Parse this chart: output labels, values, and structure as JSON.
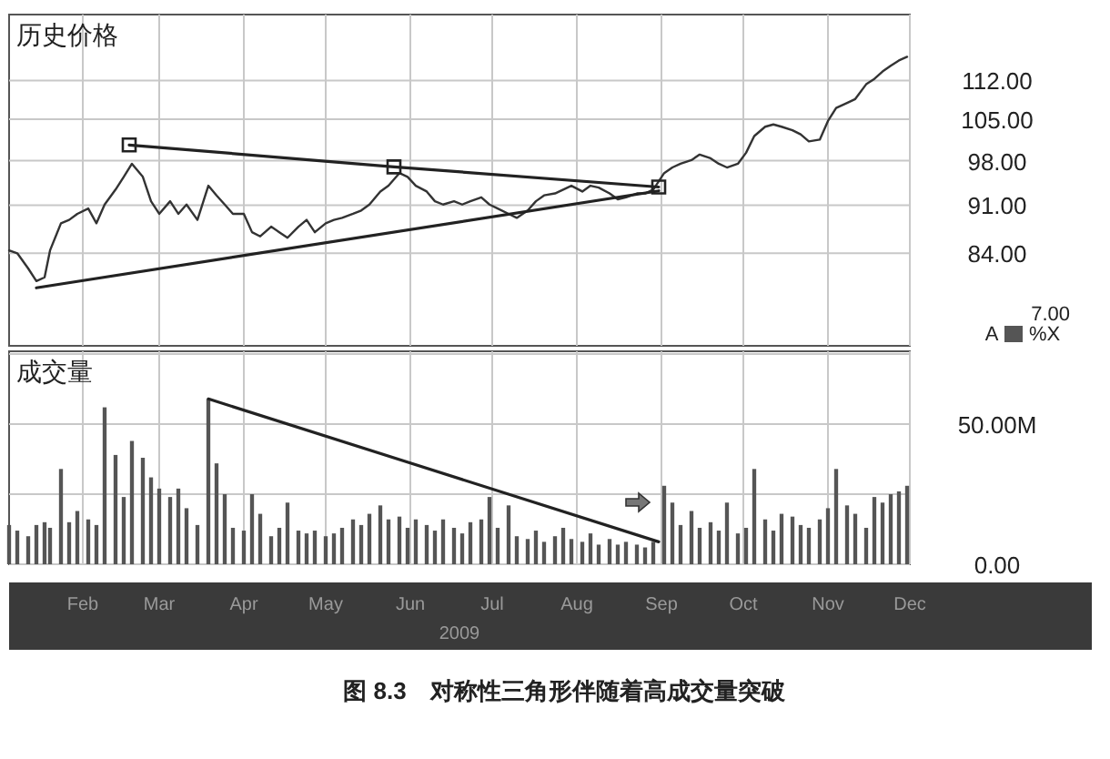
{
  "chart_data": [
    {
      "type": "line",
      "title": "历史价格",
      "log": "y",
      "grid": true,
      "tick_labels": "y",
      "xlim": [
        "2009-01-05",
        "2009-12-01"
      ],
      "ylim": [
        72,
        125
      ],
      "xticks": [
        {
          "value": "2009-02-01",
          "label": null
        },
        {
          "value": "2009-03-01",
          "label": null
        },
        {
          "value": "2009-04-01",
          "label": null
        },
        {
          "value": "2009-05-01",
          "label": null
        },
        {
          "value": "2009-06-01",
          "label": null
        },
        {
          "value": "2009-07-01",
          "label": null
        },
        {
          "value": "2009-08-01",
          "label": null
        },
        {
          "value": "2009-09-01",
          "label": null
        },
        {
          "value": "2009-10-01",
          "label": null
        },
        {
          "value": "2009-11-01",
          "label": null
        },
        {
          "value": "2009-12-01",
          "label": null
        }
      ],
      "yticks": [
        {
          "value": 84,
          "label": "84.00"
        },
        {
          "value": 91,
          "label": "91.00"
        },
        {
          "value": 98,
          "label": "98.00"
        },
        {
          "value": 105,
          "label": "105.00"
        },
        {
          "value": 112,
          "label": "112.00"
        }
      ],
      "annotations": [
        "7.00",
        "A",
        "%X"
      ],
      "series": [
        {
          "color": "#333333",
          "marker": "none",
          "x": [
            "2009-01-05",
            "2009-01-08",
            "2009-01-12",
            "2009-01-15",
            "2009-01-18",
            "2009-01-20",
            "2009-01-24",
            "2009-01-27",
            "2009-01-30",
            "2009-02-03",
            "2009-02-06",
            "2009-02-09",
            "2009-02-13",
            "2009-02-16",
            "2009-02-19",
            "2009-02-23",
            "2009-02-26",
            "2009-03-01",
            "2009-03-05",
            "2009-03-08",
            "2009-03-11",
            "2009-03-15",
            "2009-03-19",
            "2009-03-22",
            "2009-03-25",
            "2009-03-28",
            "2009-04-01",
            "2009-04-04",
            "2009-04-07",
            "2009-04-11",
            "2009-04-14",
            "2009-04-17",
            "2009-04-21",
            "2009-04-24",
            "2009-04-27",
            "2009-05-01",
            "2009-05-04",
            "2009-05-07",
            "2009-05-11",
            "2009-05-14",
            "2009-05-17",
            "2009-05-21",
            "2009-05-24",
            "2009-05-28",
            "2009-05-31",
            "2009-06-03",
            "2009-06-07",
            "2009-06-10",
            "2009-06-13",
            "2009-06-17",
            "2009-06-20",
            "2009-06-23",
            "2009-06-27",
            "2009-06-30",
            "2009-07-03",
            "2009-07-07",
            "2009-07-10",
            "2009-07-14",
            "2009-07-17",
            "2009-07-20",
            "2009-07-24",
            "2009-07-27",
            "2009-07-30",
            "2009-08-03",
            "2009-08-06",
            "2009-08-09",
            "2009-08-13",
            "2009-08-16",
            "2009-08-19",
            "2009-08-23",
            "2009-08-26",
            "2009-08-29",
            "2009-09-02",
            "2009-09-05",
            "2009-09-08",
            "2009-09-12",
            "2009-09-15",
            "2009-09-19",
            "2009-09-22",
            "2009-09-25",
            "2009-09-29",
            "2009-10-02",
            "2009-10-05",
            "2009-10-09",
            "2009-10-12",
            "2009-10-15",
            "2009-10-19",
            "2009-10-22",
            "2009-10-25",
            "2009-10-29",
            "2009-11-01",
            "2009-11-04",
            "2009-11-08",
            "2009-11-11",
            "2009-11-15",
            "2009-11-18",
            "2009-11-21",
            "2009-11-24",
            "2009-11-27",
            "2009-11-30"
          ],
          "values": [
            84.4,
            84.0,
            81.9,
            80.2,
            80.7,
            84.4,
            88.3,
            88.8,
            89.7,
            90.5,
            88.3,
            91.1,
            93.4,
            95.4,
            97.5,
            95.4,
            91.6,
            89.7,
            91.6,
            89.7,
            91.1,
            88.8,
            94.0,
            92.5,
            91.1,
            89.7,
            89.7,
            87.0,
            86.4,
            87.8,
            87.0,
            86.2,
            87.8,
            88.8,
            87.0,
            88.3,
            88.8,
            89.1,
            89.7,
            90.2,
            91.1,
            93.1,
            94.0,
            96.0,
            95.4,
            94.0,
            93.1,
            91.6,
            91.1,
            91.6,
            91.1,
            91.6,
            92.2,
            91.1,
            90.5,
            89.7,
            89.1,
            90.2,
            91.6,
            92.5,
            92.8,
            93.4,
            94.0,
            93.1,
            94.0,
            93.7,
            92.8,
            91.9,
            92.2,
            92.8,
            92.8,
            93.4,
            96.0,
            96.9,
            97.5,
            98.1,
            99.0,
            98.4,
            97.5,
            96.9,
            97.5,
            99.3,
            102.1,
            103.7,
            104.1,
            103.7,
            103.1,
            102.4,
            101.2,
            101.5,
            104.7,
            107.0,
            107.9,
            108.6,
            111.3,
            112.3,
            113.7,
            114.8,
            115.8,
            116.5
          ]
        },
        {
          "color": "#222222",
          "marker": "square",
          "x": [
            "2009-02-18",
            "2009-05-26",
            "2009-08-31"
          ],
          "values": [
            100.6,
            97.0,
            93.8
          ]
        },
        {
          "color": "#222222",
          "marker": "none",
          "x": [
            "2009-01-15",
            "2009-08-31"
          ],
          "values": [
            79.3,
            93.2
          ]
        }
      ]
    },
    {
      "type": "bar",
      "title": "成交量",
      "grid": true,
      "xlabel": "2009",
      "xlim": [
        "2009-01-05",
        "2009-12-01"
      ],
      "ylim": [
        0,
        76
      ],
      "xticks": [
        {
          "value": "2009-02-01",
          "label": "Feb"
        },
        {
          "value": "2009-03-01",
          "label": "Mar"
        },
        {
          "value": "2009-04-01",
          "label": "Apr"
        },
        {
          "value": "2009-05-01",
          "label": "May"
        },
        {
          "value": "2009-06-01",
          "label": "Jun"
        },
        {
          "value": "2009-07-01",
          "label": "Jul"
        },
        {
          "value": "2009-08-01",
          "label": "Aug"
        },
        {
          "value": "2009-09-01",
          "label": "Sep"
        },
        {
          "value": "2009-10-01",
          "label": "Oct"
        },
        {
          "value": "2009-11-01",
          "label": "Nov"
        },
        {
          "value": "2009-12-01",
          "label": "Dec"
        }
      ],
      "yticks": [
        {
          "value": 0,
          "label": "0.00"
        },
        {
          "value": 25,
          "label": null
        },
        {
          "value": 50,
          "label": "50.00M"
        },
        {
          "value": 75,
          "label": null
        }
      ],
      "annotations": [
        "图 8.3　对称性三角形伴随着高成交量突破"
      ],
      "series": [
        {
          "color": "#555555",
          "x": [
            "2009-01-05",
            "2009-01-08",
            "2009-01-12",
            "2009-01-15",
            "2009-01-18",
            "2009-01-20",
            "2009-01-24",
            "2009-01-27",
            "2009-01-30",
            "2009-02-03",
            "2009-02-06",
            "2009-02-09",
            "2009-02-13",
            "2009-02-16",
            "2009-02-19",
            "2009-02-23",
            "2009-02-26",
            "2009-03-01",
            "2009-03-05",
            "2009-03-08",
            "2009-03-11",
            "2009-03-15",
            "2009-03-19",
            "2009-03-22",
            "2009-03-25",
            "2009-03-28",
            "2009-04-01",
            "2009-04-04",
            "2009-04-07",
            "2009-04-11",
            "2009-04-14",
            "2009-04-17",
            "2009-04-21",
            "2009-04-24",
            "2009-04-27",
            "2009-05-01",
            "2009-05-04",
            "2009-05-07",
            "2009-05-11",
            "2009-05-14",
            "2009-05-17",
            "2009-05-21",
            "2009-05-24",
            "2009-05-28",
            "2009-05-31",
            "2009-06-03",
            "2009-06-07",
            "2009-06-10",
            "2009-06-13",
            "2009-06-17",
            "2009-06-20",
            "2009-06-23",
            "2009-06-27",
            "2009-06-30",
            "2009-07-03",
            "2009-07-07",
            "2009-07-10",
            "2009-07-14",
            "2009-07-17",
            "2009-07-20",
            "2009-07-24",
            "2009-07-27",
            "2009-07-30",
            "2009-08-03",
            "2009-08-06",
            "2009-08-09",
            "2009-08-13",
            "2009-08-16",
            "2009-08-19",
            "2009-08-23",
            "2009-08-26",
            "2009-08-29",
            "2009-09-02",
            "2009-09-05",
            "2009-09-08",
            "2009-09-12",
            "2009-09-15",
            "2009-09-19",
            "2009-09-22",
            "2009-09-25",
            "2009-09-29",
            "2009-10-02",
            "2009-10-05",
            "2009-10-09",
            "2009-10-12",
            "2009-10-15",
            "2009-10-19",
            "2009-10-22",
            "2009-10-25",
            "2009-10-29",
            "2009-11-01",
            "2009-11-04",
            "2009-11-08",
            "2009-11-11",
            "2009-11-15",
            "2009-11-18",
            "2009-11-21",
            "2009-11-24",
            "2009-11-27",
            "2009-11-30"
          ],
          "values": [
            14,
            12,
            10,
            14,
            15,
            13,
            34,
            15,
            19,
            16,
            14,
            56,
            39,
            24,
            44,
            38,
            31,
            27,
            24,
            27,
            20,
            14,
            59,
            36,
            25,
            13,
            12,
            25,
            18,
            10,
            13,
            22,
            12,
            11,
            12,
            10,
            11,
            13,
            16,
            14,
            18,
            21,
            16,
            17,
            13,
            16,
            14,
            12,
            16,
            13,
            11,
            15,
            16,
            24,
            13,
            21,
            10,
            9,
            12,
            8,
            10,
            13,
            9,
            8,
            11,
            7,
            9,
            7,
            8,
            7,
            6,
            8,
            28,
            22,
            14,
            19,
            13,
            15,
            12,
            22,
            11,
            13,
            34,
            16,
            12,
            18,
            17,
            14,
            13,
            16,
            20,
            34,
            21,
            18,
            13,
            24,
            22,
            25,
            26,
            28
          ]
        },
        {
          "type": "line",
          "color": "#222222",
          "marker": "none",
          "x": [
            "2009-03-19",
            "2009-08-31"
          ],
          "values": [
            59,
            8
          ]
        }
      ]
    }
  ]
}
